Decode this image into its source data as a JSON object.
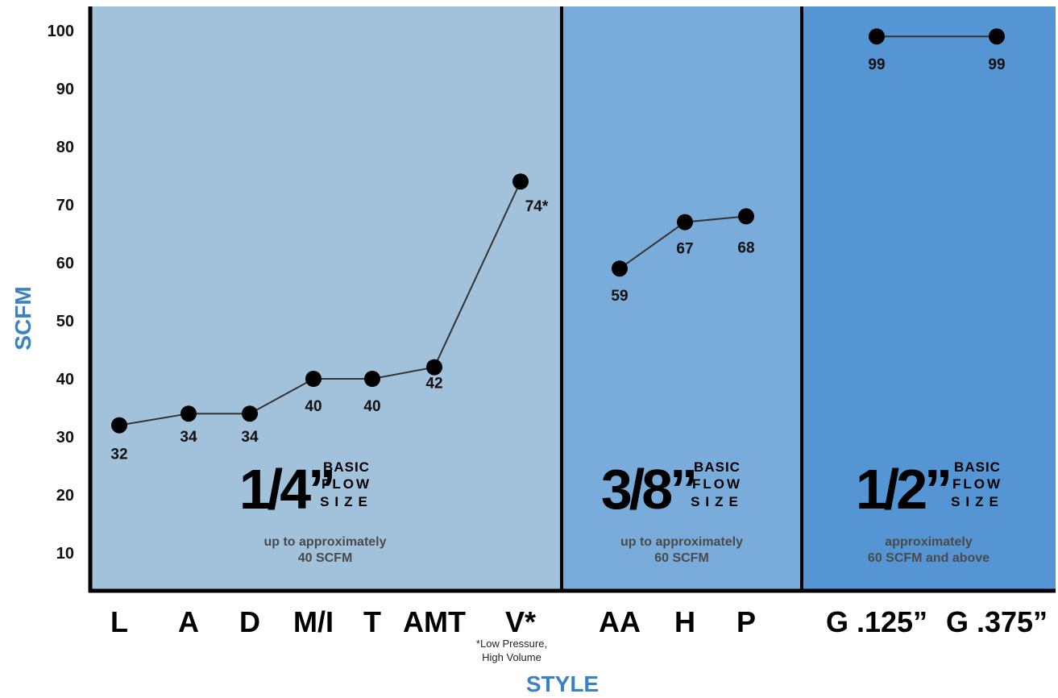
{
  "chart_data": {
    "type": "line",
    "xlabel": "STYLE",
    "ylabel": "SCFM",
    "ylim": [
      0,
      105
    ],
    "yticks": [
      10,
      20,
      30,
      40,
      50,
      60,
      70,
      80,
      90,
      100
    ],
    "grid": false,
    "categories": [
      "L",
      "A",
      "D",
      "M/I",
      "T",
      "AMT",
      "V*",
      "AA",
      "H",
      "P",
      "G .125”",
      "G .375”"
    ],
    "series": [
      {
        "segment": "1/4",
        "points": [
          {
            "category": "L",
            "value": 32,
            "label": "32"
          },
          {
            "category": "A",
            "value": 34,
            "label": "34"
          },
          {
            "category": "D",
            "value": 34,
            "label": "34"
          },
          {
            "category": "M/I",
            "value": 40,
            "label": "40"
          },
          {
            "category": "T",
            "value": 40,
            "label": "40"
          },
          {
            "category": "AMT",
            "value": 42,
            "label": "42"
          },
          {
            "category": "V*",
            "value": 74,
            "label": "74*"
          }
        ]
      },
      {
        "segment": "3/8",
        "points": [
          {
            "category": "AA",
            "value": 59,
            "label": "59"
          },
          {
            "category": "H",
            "value": 67,
            "label": "67"
          },
          {
            "category": "P",
            "value": 68,
            "label": "68"
          }
        ]
      },
      {
        "segment": "1/2",
        "points": [
          {
            "category": "G .125”",
            "value": 99,
            "label": "99"
          },
          {
            "category": "G .375”",
            "value": 99,
            "label": "99"
          }
        ]
      }
    ],
    "regions": [
      {
        "size": "1/4”",
        "basic": "BASIC",
        "flow": "FLOW",
        "sz": "SIZE",
        "desc": [
          "up to approximately",
          "40 SCFM"
        ],
        "color": "#a2c1da"
      },
      {
        "size": "3/8”",
        "basic": "BASIC",
        "flow": "FLOW",
        "sz": "SIZE",
        "desc": [
          "up to approximately",
          "60 SCFM"
        ],
        "color": "#7aacdb"
      },
      {
        "size": "1/2”",
        "basic": "BASIC",
        "flow": "FLOW",
        "sz": "SIZE",
        "desc": [
          "approximately",
          "60 SCFM and above"
        ],
        "color": "#5595d3"
      }
    ],
    "footnote": [
      "*Low Pressure,",
      "High Volume"
    ]
  }
}
